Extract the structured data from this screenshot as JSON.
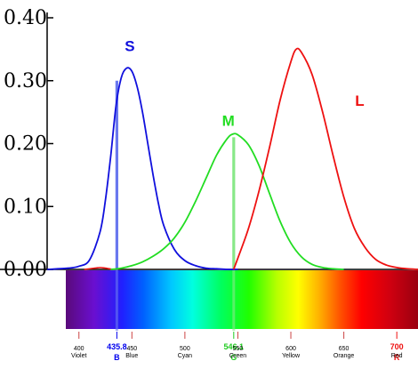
{
  "chart_data": {
    "type": "line",
    "title": "",
    "xlabel": "",
    "ylabel": "",
    "ylim": [
      0,
      0.4
    ],
    "xlim": [
      370,
      720
    ],
    "grid": false,
    "y_ticks": [
      {
        "value": 0.0,
        "label": "0.00"
      },
      {
        "value": 0.1,
        "label": "0.10"
      },
      {
        "value": 0.2,
        "label": "0.20"
      },
      {
        "value": 0.3,
        "label": "0.30"
      },
      {
        "value": 0.4,
        "label": "0.40"
      }
    ],
    "wavelength_ticks": [
      {
        "value": 400,
        "label": "400",
        "color_name": "Violet",
        "highlight": false
      },
      {
        "value": 435.8,
        "label": "435.8",
        "color_name": "B",
        "highlight": true,
        "color": "#0000ee"
      },
      {
        "value": 450,
        "label": "450",
        "color_name": "Blue",
        "highlight": false
      },
      {
        "value": 500,
        "label": "500",
        "color_name": "Cyan",
        "highlight": false
      },
      {
        "value": 546.1,
        "label": "546.1",
        "color_name": "G",
        "highlight": true,
        "color": "#22cc22"
      },
      {
        "value": 550,
        "label": "550",
        "color_name": "Green",
        "highlight": false
      },
      {
        "value": 600,
        "label": "600",
        "color_name": "Yellow",
        "highlight": false
      },
      {
        "value": 650,
        "label": "650",
        "color_name": "Orange",
        "highlight": false
      },
      {
        "value": 700,
        "label": "700",
        "color_name": "R",
        "highlight": true,
        "color": "#ee1111"
      },
      {
        "value": 700,
        "label": "",
        "color_name": "Red",
        "highlight": false
      }
    ],
    "series": [
      {
        "name": "S",
        "color": "#1010dd",
        "x": [
          370,
          390,
          400,
          410,
          420,
          425,
          430,
          435,
          440,
          445,
          450,
          455,
          460,
          465,
          470,
          475,
          480,
          490,
          500,
          510,
          520,
          530,
          540,
          550
        ],
        "values": [
          0.0,
          0.002,
          0.005,
          0.015,
          0.06,
          0.11,
          0.18,
          0.26,
          0.305,
          0.32,
          0.315,
          0.29,
          0.25,
          0.2,
          0.15,
          0.105,
          0.07,
          0.032,
          0.014,
          0.006,
          0.002,
          0.001,
          0.0,
          0.0
        ]
      },
      {
        "name": "M",
        "color": "#22dd22",
        "x": [
          430,
          440,
          450,
          460,
          470,
          480,
          490,
          500,
          510,
          520,
          530,
          540,
          545,
          550,
          560,
          570,
          580,
          590,
          600,
          610,
          620,
          630,
          640,
          650
        ],
        "values": [
          0.0,
          0.002,
          0.006,
          0.012,
          0.021,
          0.033,
          0.05,
          0.075,
          0.108,
          0.145,
          0.182,
          0.208,
          0.215,
          0.214,
          0.198,
          0.165,
          0.12,
          0.076,
          0.042,
          0.02,
          0.008,
          0.003,
          0.001,
          0.0
        ]
      },
      {
        "name": "L",
        "color": "#ee1111",
        "x": [
          546,
          550,
          560,
          570,
          580,
          590,
          600,
          605,
          610,
          620,
          630,
          640,
          650,
          660,
          670,
          680,
          690,
          700,
          710,
          720
        ],
        "values": [
          0.0,
          0.018,
          0.065,
          0.125,
          0.195,
          0.27,
          0.33,
          0.35,
          0.345,
          0.31,
          0.25,
          0.18,
          0.115,
          0.065,
          0.035,
          0.016,
          0.007,
          0.003,
          0.001,
          0.0
        ]
      }
    ],
    "series_labels": [
      {
        "name": "S",
        "text": "S",
        "color": "#1010dd",
        "x": 448,
        "y": 0.347
      },
      {
        "name": "M",
        "text": "M",
        "color": "#22dd22",
        "x": 541,
        "y": 0.228
      },
      {
        "name": "L",
        "text": "L",
        "color": "#ee1111",
        "x": 665,
        "y": 0.26
      }
    ],
    "markers": [
      {
        "name": "B",
        "wavelength": 435.8,
        "value": 0.3,
        "color": "#6a78ee"
      },
      {
        "name": "G",
        "wavelength": 546.1,
        "value": 0.21,
        "color": "#88e888"
      }
    ],
    "red_bump": {
      "x": [
        405,
        415,
        420,
        425,
        432
      ],
      "values": [
        0.0,
        0.002,
        0.003,
        0.002,
        0.0
      ],
      "color": "#ee1111"
    }
  }
}
